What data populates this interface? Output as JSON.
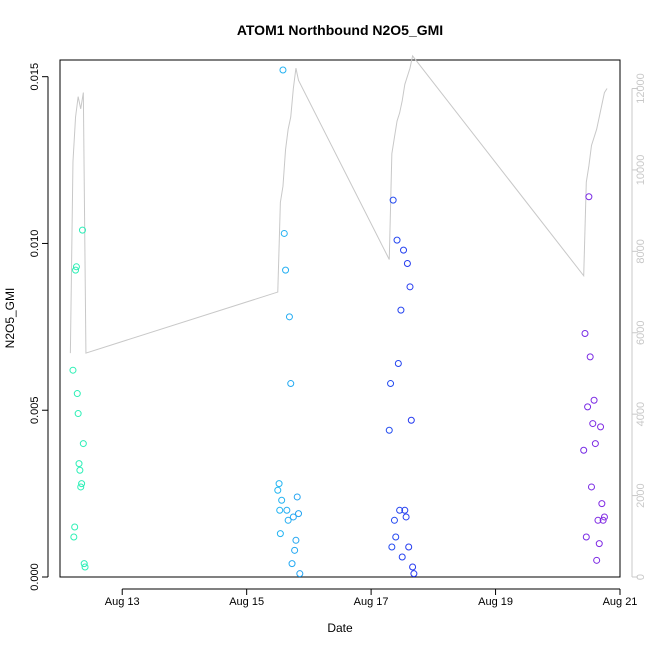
{
  "chart_data": {
    "type": "scatter",
    "title": "ATOM1 Northbound N2O5_GMI",
    "xlabel": "Date",
    "ylabel": "N2O5_GMI",
    "x_ticks": [
      "Aug 13",
      "Aug 15",
      "Aug 17",
      "Aug 19",
      "Aug 21"
    ],
    "y_ticks": [
      "0.000",
      "0.005",
      "0.010",
      "0.015"
    ],
    "y2_ticks": [
      "0",
      "2000",
      "4000",
      "6000",
      "8000",
      "10000",
      "12000"
    ],
    "xlim": [
      "2016-08-12 00:00",
      "2016-08-21 00:00"
    ],
    "ylim": [
      0,
      0.0155
    ],
    "y2lim": [
      0,
      12700
    ],
    "colors": {
      "axis": "#000000",
      "secondary_axis": "#c8c8c8",
      "altitude_line": "#c8c8c8",
      "gradient": [
        "#2ef2b0",
        "#24d4f2",
        "#2424f0",
        "#8a2be2"
      ]
    },
    "series": [
      {
        "x": [
          "2016-08-12 05:00",
          "2016-08-12 05:20",
          "2016-08-12 05:40",
          "2016-08-12 06:00",
          "2016-08-12 06:20",
          "2016-08-12 06:40",
          "2016-08-12 07:00",
          "2016-08-12 07:20",
          "2016-08-12 07:40",
          "2016-08-12 08:00",
          "2016-08-12 08:20",
          "2016-08-12 08:40",
          "2016-08-12 09:00",
          "2016-08-12 09:20",
          "2016-08-12 09:40",
          "2016-08-15 12:00",
          "2016-08-15 12:30",
          "2016-08-15 12:45",
          "2016-08-15 13:00",
          "2016-08-15 13:30",
          "2016-08-15 14:00",
          "2016-08-15 14:30",
          "2016-08-15 15:00",
          "2016-08-15 15:30",
          "2016-08-15 16:00",
          "2016-08-15 16:30",
          "2016-08-15 17:00",
          "2016-08-15 17:30",
          "2016-08-15 18:00",
          "2016-08-15 18:30",
          "2016-08-15 19:00",
          "2016-08-15 19:30",
          "2016-08-15 20:00",
          "2016-08-15 20:30",
          "2016-08-17 07:00",
          "2016-08-17 07:30",
          "2016-08-17 08:00",
          "2016-08-17 08:30",
          "2016-08-17 09:00",
          "2016-08-17 09:30",
          "2016-08-17 10:00",
          "2016-08-17 10:30",
          "2016-08-17 11:00",
          "2016-08-17 11:30",
          "2016-08-17 12:00",
          "2016-08-17 12:30",
          "2016-08-17 13:00",
          "2016-08-17 13:30",
          "2016-08-17 14:00",
          "2016-08-17 14:30",
          "2016-08-17 15:00",
          "2016-08-17 15:30",
          "2016-08-17 16:00",
          "2016-08-17 16:30",
          "2016-08-20 10:00",
          "2016-08-20 10:30",
          "2016-08-20 11:00",
          "2016-08-20 11:30",
          "2016-08-20 12:00",
          "2016-08-20 12:30",
          "2016-08-20 13:00",
          "2016-08-20 13:30",
          "2016-08-20 14:00",
          "2016-08-20 14:30",
          "2016-08-20 15:00",
          "2016-08-20 15:30",
          "2016-08-20 16:00",
          "2016-08-20 16:30",
          "2016-08-20 17:00",
          "2016-08-20 17:30",
          "2016-08-20 18:00"
        ],
        "y": [
          0.0062,
          0.0012,
          0.0015,
          0.0092,
          0.0093,
          0.0055,
          0.0049,
          0.0034,
          0.0032,
          0.0027,
          0.0028,
          0.0104,
          0.004,
          0.0004,
          0.0003,
          0.0026,
          0.0028,
          0.002,
          0.0013,
          0.0023,
          0.0152,
          0.0103,
          0.0092,
          0.002,
          0.0017,
          0.0078,
          0.0058,
          0.0004,
          0.0018,
          0.0008,
          0.0011,
          0.0024,
          0.0019,
          0.0001,
          0.0044,
          0.0058,
          0.0009,
          0.0113,
          0.0017,
          0.0012,
          0.0101,
          0.0064,
          0.002,
          0.008,
          0.0006,
          0.0098,
          0.002,
          0.0018,
          0.0094,
          0.0009,
          0.0087,
          0.0047,
          0.0003,
          0.0001,
          0.0038,
          0.0073,
          0.0012,
          0.0051,
          0.0114,
          0.0066,
          0.0027,
          0.0046,
          0.0053,
          0.004,
          0.0005,
          0.0017,
          0.001,
          0.0045,
          0.0022,
          0.0017,
          0.0018
        ]
      }
    ],
    "altitude_series": [
      {
        "x": [
          "2016-08-12 04:00",
          "2016-08-12 05:00",
          "2016-08-12 06:00",
          "2016-08-12 07:00",
          "2016-08-12 08:00",
          "2016-08-12 09:00",
          "2016-08-12 10:00",
          "2016-08-15 12:00",
          "2016-08-15 13:00",
          "2016-08-15 14:00",
          "2016-08-15 15:00",
          "2016-08-15 16:00",
          "2016-08-15 17:00",
          "2016-08-15 18:00",
          "2016-08-15 19:00",
          "2016-08-15 20:00",
          "2016-08-17 07:00",
          "2016-08-17 08:00",
          "2016-08-17 09:00",
          "2016-08-17 10:00",
          "2016-08-17 11:00",
          "2016-08-17 12:00",
          "2016-08-17 13:00",
          "2016-08-17 14:00",
          "2016-08-17 15:00",
          "2016-08-17 16:00",
          "2016-08-20 10:00",
          "2016-08-20 11:00",
          "2016-08-20 12:00",
          "2016-08-20 13:00",
          "2016-08-20 14:00",
          "2016-08-20 15:00",
          "2016-08-20 16:00",
          "2016-08-20 17:00",
          "2016-08-20 18:00",
          "2016-08-20 19:00"
        ],
        "y": [
          5500,
          10200,
          11300,
          11800,
          11500,
          11900,
          5500,
          7000,
          9200,
          9600,
          10500,
          11000,
          11300,
          12000,
          12500,
          12200,
          7800,
          10400,
          10800,
          11200,
          11400,
          11700,
          12100,
          12300,
          12500,
          12800,
          7400,
          9700,
          10100,
          10600,
          10800,
          11000,
          11300,
          11600,
          11900,
          12000
        ]
      }
    ]
  }
}
